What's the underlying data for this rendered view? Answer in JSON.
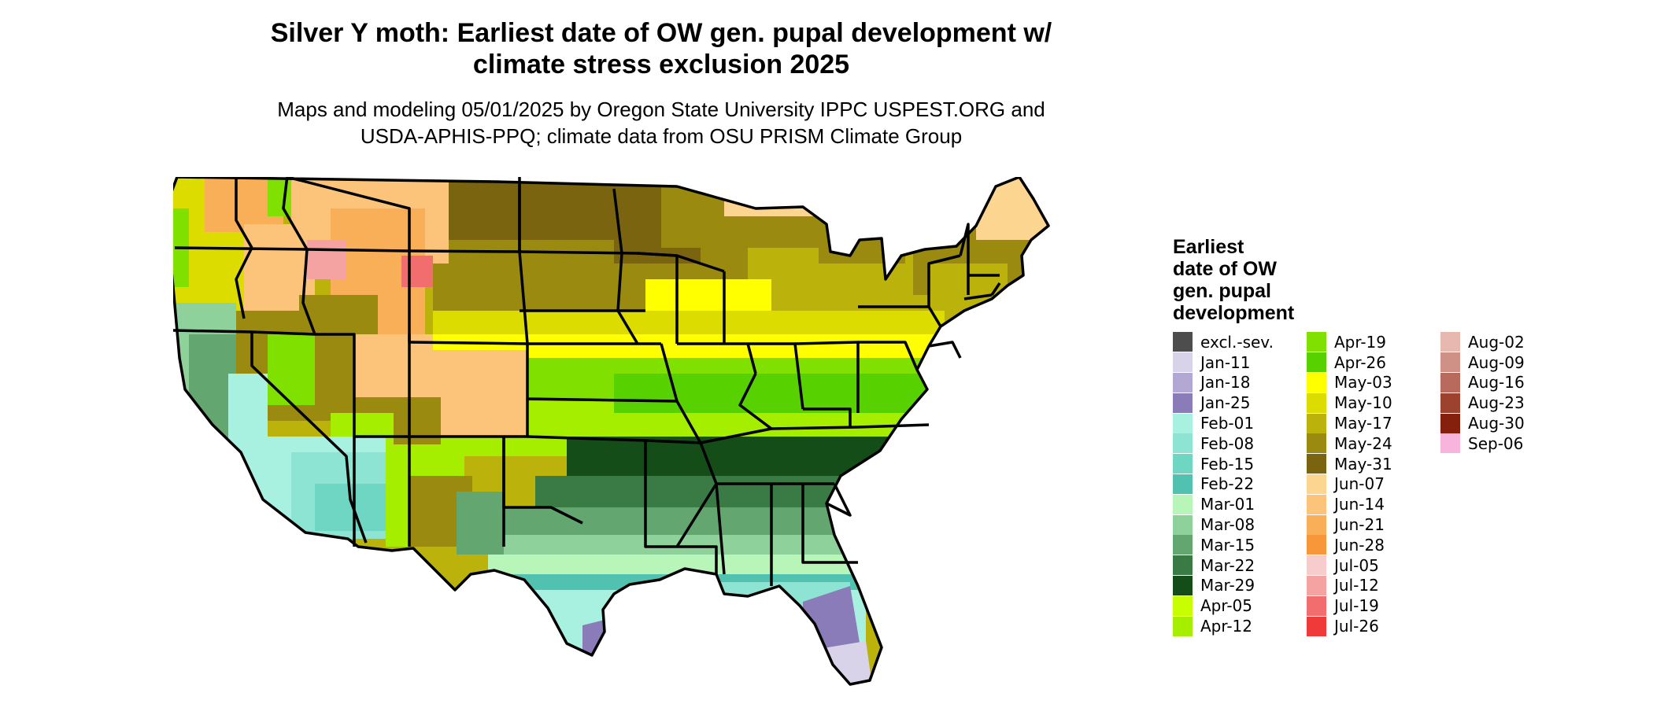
{
  "title_line1": "Silver Y moth: Earliest date of OW gen. pupal development w/",
  "title_line2": "climate stress exclusion 2025",
  "subtitle_line1": "Maps and modeling 05/01/2025 by Oregon State University IPPC USPEST.ORG and",
  "subtitle_line2": "USDA-APHIS-PPQ; climate data from OSU PRISM Climate Group",
  "legend": {
    "title": [
      "Earliest",
      "date of OW",
      "gen. pupal",
      "development"
    ],
    "columns": [
      [
        {
          "label": "excl.-sev.",
          "color": "#4d4d4d"
        },
        {
          "label": "Jan-11",
          "color": "#d9d3ea"
        },
        {
          "label": "Jan-18",
          "color": "#b3a8d4"
        },
        {
          "label": "Jan-25",
          "color": "#8a7cb8"
        },
        {
          "label": "Feb-01",
          "color": "#a8f0e0"
        },
        {
          "label": "Feb-08",
          "color": "#8ee4d2"
        },
        {
          "label": "Feb-15",
          "color": "#6fd6c4"
        },
        {
          "label": "Feb-22",
          "color": "#52c2b0"
        },
        {
          "label": "Mar-01",
          "color": "#b8f5b8"
        },
        {
          "label": "Mar-08",
          "color": "#8fd19a"
        },
        {
          "label": "Mar-15",
          "color": "#64a670"
        },
        {
          "label": "Mar-22",
          "color": "#3a7a44"
        },
        {
          "label": "Mar-29",
          "color": "#154d18"
        },
        {
          "label": "Apr-05",
          "color": "#c8ff00"
        },
        {
          "label": "Apr-12",
          "color": "#a6ee00"
        }
      ],
      [
        {
          "label": "Apr-19",
          "color": "#80e000"
        },
        {
          "label": "Apr-26",
          "color": "#58d100"
        },
        {
          "label": "May-03",
          "color": "#ffff00"
        },
        {
          "label": "May-10",
          "color": "#dcdc00"
        },
        {
          "label": "May-17",
          "color": "#bcb20c"
        },
        {
          "label": "May-24",
          "color": "#9a8a10"
        },
        {
          "label": "May-31",
          "color": "#7a6410"
        },
        {
          "label": "Jun-07",
          "color": "#fcd690"
        },
        {
          "label": "Jun-14",
          "color": "#fbc47a"
        },
        {
          "label": "Jun-21",
          "color": "#f9ae58"
        },
        {
          "label": "Jun-28",
          "color": "#f8963a"
        },
        {
          "label": "Jul-05",
          "color": "#f6cccc"
        },
        {
          "label": "Jul-12",
          "color": "#f4a2a2"
        },
        {
          "label": "Jul-19",
          "color": "#f26e6e"
        },
        {
          "label": "Jul-26",
          "color": "#f03a3a"
        }
      ],
      [
        {
          "label": "Aug-02",
          "color": "#e6b8b0"
        },
        {
          "label": "Aug-09",
          "color": "#cf9186"
        },
        {
          "label": "Aug-16",
          "color": "#b86a5c"
        },
        {
          "label": "Aug-23",
          "color": "#9e4230"
        },
        {
          "label": "Aug-30",
          "color": "#85200d"
        },
        {
          "label": "Sep-06",
          "color": "#f8b4dc"
        }
      ]
    ]
  }
}
